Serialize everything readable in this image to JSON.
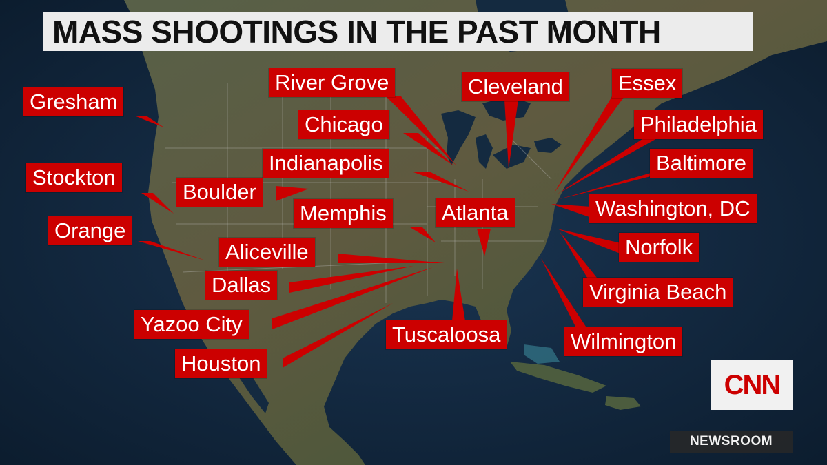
{
  "title": "MASS SHOOTINGS IN THE PAST MONTH",
  "colors": {
    "label_bg": "#cc0000",
    "label_text": "#ffffff",
    "title_bg": "#ececec",
    "title_text": "#111111",
    "land": "#4a5b3c",
    "ocean": "#13283f"
  },
  "cities": [
    {
      "id": "gresham",
      "name": "Gresham"
    },
    {
      "id": "stockton",
      "name": "Stockton"
    },
    {
      "id": "orange",
      "name": "Orange"
    },
    {
      "id": "boulder",
      "name": "Boulder"
    },
    {
      "id": "river-grove",
      "name": "River Grove"
    },
    {
      "id": "chicago",
      "name": "Chicago"
    },
    {
      "id": "indianapolis",
      "name": "Indianapolis"
    },
    {
      "id": "memphis",
      "name": "Memphis"
    },
    {
      "id": "atlanta",
      "name": "Atlanta"
    },
    {
      "id": "aliceville",
      "name": "Aliceville"
    },
    {
      "id": "dallas",
      "name": "Dallas"
    },
    {
      "id": "yazoo-city",
      "name": "Yazoo City"
    },
    {
      "id": "houston",
      "name": "Houston"
    },
    {
      "id": "tuscaloosa",
      "name": "Tuscaloosa"
    },
    {
      "id": "cleveland",
      "name": "Cleveland"
    },
    {
      "id": "essex",
      "name": "Essex"
    },
    {
      "id": "philadelphia",
      "name": "Philadelphia"
    },
    {
      "id": "baltimore",
      "name": "Baltimore"
    },
    {
      "id": "washington-dc",
      "name": "Washington, DC"
    },
    {
      "id": "norfolk",
      "name": "Norfolk"
    },
    {
      "id": "virginia-beach",
      "name": "Virginia Beach"
    },
    {
      "id": "wilmington",
      "name": "Wilmington"
    }
  ],
  "logo": "CNN",
  "program_bug": "NEWSROOM"
}
